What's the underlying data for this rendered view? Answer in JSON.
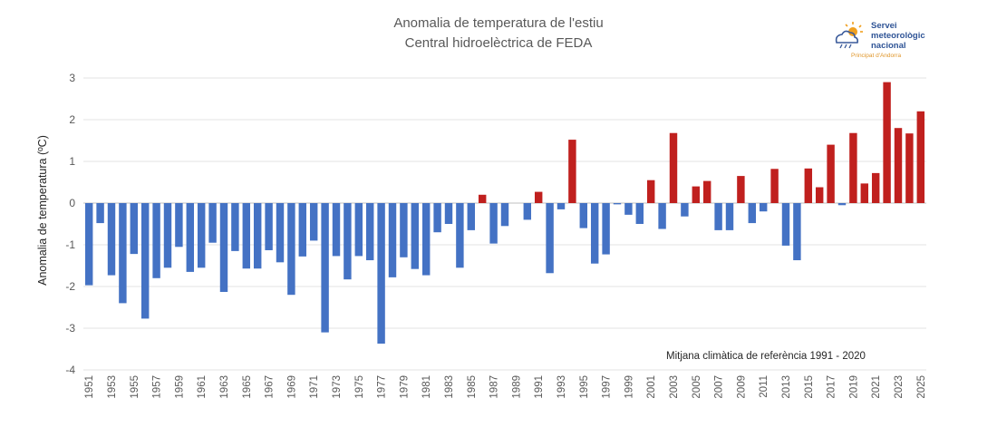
{
  "logo": {
    "line1": "Servei",
    "line2": "meteorològic",
    "line3": "nacional",
    "sub": "Principat d'Andorra"
  },
  "chart_data": {
    "type": "bar",
    "title": "Anomalia de temperatura de l'estiu",
    "subtitle": "Central hidroelèctrica de FEDA",
    "ylabel": "Anomalia de temperatura (ºC)",
    "xlabel": "",
    "ylim": [
      -4,
      3
    ],
    "yticks": [
      -4,
      -3,
      -2,
      -1,
      0,
      1,
      2,
      3
    ],
    "grid": true,
    "annotation": "Mitjana climàtica de referència 1991 - 2020",
    "colors": {
      "negative": "#4472c4",
      "positive": "#c0201e"
    },
    "xtick_labels": [
      "1951",
      "1953",
      "1955",
      "1957",
      "1959",
      "1961",
      "1963",
      "1965",
      "1967",
      "1969",
      "1971",
      "1973",
      "1975",
      "1977",
      "1979",
      "1981",
      "1983",
      "1985",
      "1987",
      "1989",
      "1991",
      "1993",
      "1995",
      "1997",
      "1999",
      "2001",
      "2003",
      "2005",
      "2007",
      "2009",
      "2011",
      "2013",
      "2015",
      "2017",
      "2019",
      "2021",
      "2023",
      "2025"
    ],
    "categories": [
      "1951",
      "1952",
      "1953",
      "1954",
      "1955",
      "1956",
      "1957",
      "1958",
      "1959",
      "1960",
      "1961",
      "1962",
      "1963",
      "1964",
      "1965",
      "1966",
      "1967",
      "1968",
      "1969",
      "1970",
      "1971",
      "1972",
      "1973",
      "1974",
      "1975",
      "1976",
      "1977",
      "1978",
      "1979",
      "1980",
      "1981",
      "1982",
      "1983",
      "1984",
      "1985",
      "1986",
      "1987",
      "1988",
      "1989",
      "1990",
      "1991",
      "1992",
      "1993",
      "1994",
      "1995",
      "1996",
      "1997",
      "1998",
      "1999",
      "2000",
      "2001",
      "2002",
      "2003",
      "2004",
      "2005",
      "2006",
      "2007",
      "2008",
      "2009",
      "2010",
      "2011",
      "2012",
      "2013",
      "2014",
      "2015",
      "2016",
      "2017",
      "2018",
      "2019",
      "2020",
      "2021",
      "2022",
      "2023",
      "2024",
      "2025"
    ],
    "values": [
      -1.97,
      -0.48,
      -1.73,
      -2.4,
      -1.22,
      -2.77,
      -1.8,
      -1.55,
      -1.05,
      -1.65,
      -1.55,
      -0.95,
      -2.13,
      -1.15,
      -1.57,
      -1.57,
      -1.13,
      -1.42,
      -2.2,
      -1.28,
      -0.9,
      -3.1,
      -1.27,
      -1.83,
      -1.27,
      -1.37,
      -3.37,
      -1.78,
      -1.3,
      -1.58,
      -1.73,
      -0.7,
      -0.5,
      -1.55,
      -0.65,
      0.2,
      -0.97,
      -0.55,
      0.0,
      -0.4,
      0.27,
      -1.68,
      -0.15,
      1.52,
      -0.6,
      -1.45,
      -1.23,
      -0.03,
      -0.28,
      -0.5,
      0.55,
      -0.62,
      1.68,
      -0.32,
      0.4,
      0.53,
      -0.65,
      -0.65,
      0.65,
      -0.48,
      -0.2,
      0.82,
      -1.02,
      -1.37,
      0.83,
      0.38,
      1.4,
      -0.05,
      1.68,
      0.47,
      0.72,
      2.9,
      1.8,
      1.67,
      2.2
    ]
  }
}
